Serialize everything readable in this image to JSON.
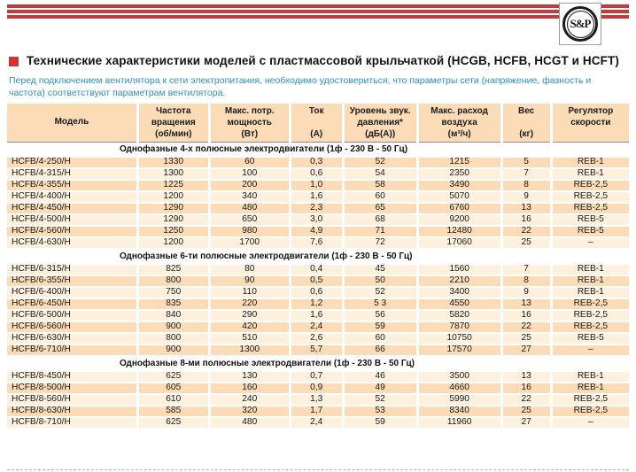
{
  "page": {
    "title": "Технические характеристики моделей с пластмассовой крыльчаткой (HCGB, HCFB, HCGT и HCFT)",
    "intro": "Перед подключением вентилятора к сети электропитания, необходимо удостовериться, что параметры сети (напряжение, фазность и частота) соответствуют параметрам вентилятора.",
    "logo_text": "S&P"
  },
  "colors": {
    "stripe_red": "#c23b3d",
    "title_square_red": "#d53431",
    "intro_blue": "#2e8fcb",
    "header_peach": "#fbdcb7",
    "row_dark": "#fbdcb7",
    "row_light": "#fdf0dc",
    "header_rule_gray": "#8c8c8c"
  },
  "table": {
    "columns": [
      {
        "key": "model",
        "label": "Модель",
        "unit": "",
        "align": "center-v"
      },
      {
        "key": "speed",
        "label": "Частота\nвращения",
        "unit": "(об/мин)",
        "align": "between"
      },
      {
        "key": "power",
        "label": "Макс. потр.\nмощность",
        "unit": "(Вт)",
        "align": "between"
      },
      {
        "key": "current",
        "label": "Ток",
        "unit": "(А)",
        "align": "between"
      },
      {
        "key": "noise",
        "label": "Уровень звук.\nдавления*",
        "unit": "(дБ(А))",
        "align": "between"
      },
      {
        "key": "airflow",
        "label": "Макс. расход\nвоздуха",
        "unit": "(м³/ч)",
        "align": "between"
      },
      {
        "key": "weight",
        "label": "Вес",
        "unit": "(кг)",
        "align": "between"
      },
      {
        "key": "regulator",
        "label": "Регулятор\nскорости",
        "unit": "",
        "align": "top"
      }
    ],
    "column_widths": [
      "21%",
      "11.5%",
      "13%",
      "8.5%",
      "12%",
      "13.5%",
      "8%",
      "12.5%"
    ],
    "sections": [
      {
        "title": "Однофазные 4-х полюсные электродвигатели (1ф - 230 В - 50 Гц)",
        "zebra_start": "dark",
        "rows": [
          [
            "HCFB/4-250/H",
            "1330",
            "60",
            "0,3",
            "52",
            "1215",
            "5",
            "REB-1"
          ],
          [
            "HCFB/4-315/H",
            "1300",
            "100",
            "0,6",
            "54",
            "2350",
            "7",
            "REB-1"
          ],
          [
            "HCFB/4-355/H",
            "1225",
            "200",
            "1,0",
            "58",
            "3490",
            "8",
            "REB-2,5"
          ],
          [
            "HCFB/4-400/H",
            "1200",
            "340",
            "1,6",
            "60",
            "5070",
            "9",
            "REB-2,5"
          ],
          [
            "HCFB/4-450/H",
            "1290",
            "480",
            "2,3",
            "65",
            "6760",
            "13",
            "REB-2,5"
          ],
          [
            "HCFB/4-500/H",
            "1290",
            "650",
            "3,0",
            "68",
            "9200",
            "16",
            "REB-5"
          ],
          [
            "HCFB/4-560/H",
            "1250",
            "980",
            "4,9",
            "71",
            "12480",
            "22",
            "REB-5"
          ],
          [
            "HCFB/4-630/H",
            "1200",
            "1700",
            "7,6",
            "72",
            "17060",
            "25",
            "–"
          ]
        ]
      },
      {
        "title": "Однофазные 6-ти полюсные электродвигатели (1ф - 230 В - 50 Гц)",
        "zebra_start": "light",
        "rows": [
          [
            "HCFB/6-315/H",
            "825",
            "80",
            "0,4",
            "45",
            "1560",
            "7",
            "REB-1"
          ],
          [
            "HCFB/6-355/H",
            "800",
            "90",
            "0,5",
            "50",
            "2210",
            "8",
            "REB-1"
          ],
          [
            "HCFB/6-400/H",
            "750",
            "110",
            "0,6",
            "52",
            "3400",
            "9",
            "REB-1"
          ],
          [
            "HCFB/6-450/H",
            "835",
            "220",
            "1,2",
            "5 3",
            "4550",
            "13",
            "REB-2,5"
          ],
          [
            "HCFB/6-500/H",
            "840",
            "290",
            "1,6",
            "56",
            "5820",
            "16",
            "REB-2,5"
          ],
          [
            "HCFB/6-560/H",
            "900",
            "420",
            "2,4",
            "59",
            "7870",
            "22",
            "REB-2,5"
          ],
          [
            "HCFB/6-630/H",
            "800",
            "510",
            "2,6",
            "60",
            "10750",
            "25",
            "REB-5"
          ],
          [
            "HCFB/6-710/H",
            "900",
            "1300",
            "5,7",
            "66",
            "17570",
            "27",
            "–"
          ]
        ]
      },
      {
        "title": "Однофазные 8-ми полюсные электродвигатели (1ф - 230 В - 50 Гц)",
        "zebra_start": "light",
        "rows": [
          [
            "HCFB/8-450/H",
            "625",
            "130",
            "0,7",
            "46",
            "3500",
            "13",
            "REB-1"
          ],
          [
            "HCFB/8-500/H",
            "605",
            "160",
            "0,9",
            "49",
            "4660",
            "16",
            "REB-1"
          ],
          [
            "HCFB/8-560/H",
            "610",
            "240",
            "1,3",
            "52",
            "5990",
            "22",
            "REB-2,5"
          ],
          [
            "HCFB/8-630/H",
            "585",
            "320",
            "1,7",
            "53",
            "8340",
            "25",
            "REB-2,5"
          ],
          [
            "HCFB/8-710/H",
            "625",
            "480",
            "2,4",
            "59",
            "11960",
            "27",
            "–"
          ]
        ]
      }
    ]
  }
}
